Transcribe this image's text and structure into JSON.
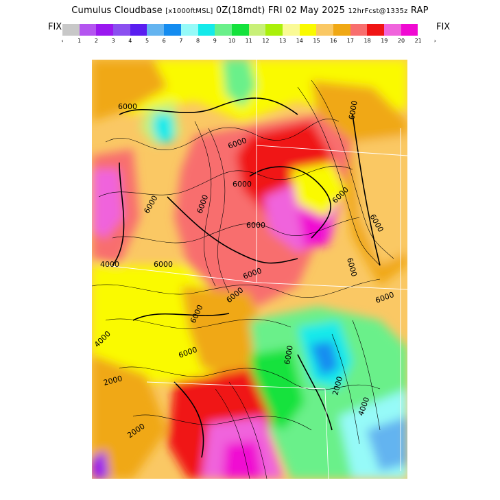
{
  "header": {
    "product": "Cumulus Cloudbase",
    "units": "[x1000ftMSL]",
    "valid": "0Z(18mdt) FRI 02 May 2025",
    "forecast": "12hrFcst@1335z",
    "model": "RAP"
  },
  "legend": {
    "left_label": "FIX",
    "right_label": "FIX",
    "ticks": [
      "‹",
      "1",
      "2",
      "3",
      "4",
      "5",
      "6",
      "7",
      "8",
      "9",
      "10",
      "11",
      "12",
      "13",
      "14",
      "15",
      "16",
      "17",
      "18",
      "19",
      "20",
      "21",
      "›"
    ],
    "colors": [
      "#c8c8c8",
      "#b455f0",
      "#9a18f0",
      "#8b4ff0",
      "#5a1ef0",
      "#64b4f0",
      "#148cf0",
      "#96faf8",
      "#14eaea",
      "#6af08a",
      "#14e23c",
      "#c8f078",
      "#aaf00a",
      "#fafa96",
      "#fafa00",
      "#fac864",
      "#f0a814",
      "#f86e6e",
      "#f01414",
      "#f064dc",
      "#f00ad2"
    ]
  },
  "map": {
    "contour_labels": [
      "6000",
      "6000",
      "6000",
      "6000",
      "6000",
      "6000",
      "6000",
      "6000",
      "6000",
      "6000",
      "6000",
      "6000",
      "6000",
      "6000",
      "6000",
      "6000",
      "6000",
      "4000",
      "4000",
      "4000",
      "2000",
      "2000",
      "2000"
    ]
  }
}
